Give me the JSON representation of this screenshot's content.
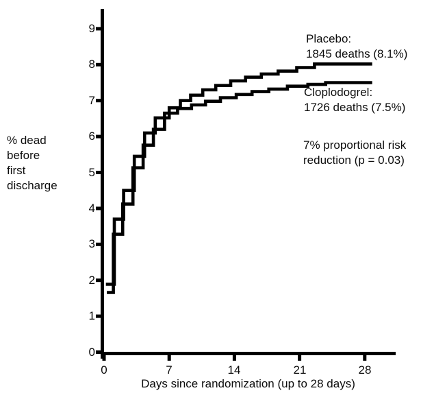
{
  "figure": {
    "background_color": "#ffffff",
    "ink_color": "#000000",
    "y_axis_label_lines": [
      "% dead",
      "before",
      "first",
      "discharge"
    ],
    "x_axis_label": "Days since randomization (up to 28 days)"
  },
  "chart_data": {
    "type": "line",
    "subtype": "cumulative-mortality-step-curves",
    "title": "",
    "xlabel": "Days since randomization (up to 28 days)",
    "ylabel": "% dead before first discharge",
    "xlim": [
      0,
      31
    ],
    "ylim": [
      0,
      9.5
    ],
    "x_ticks": [
      0,
      7,
      14,
      21,
      28
    ],
    "y_ticks": [
      0,
      1,
      2,
      3,
      4,
      5,
      6,
      7,
      8,
      9
    ],
    "grid": false,
    "legend_position": "inline-annotations",
    "line_color": "#000000",
    "series": [
      {
        "name": "Placebo",
        "deaths": 1845,
        "final_pct": 8.1,
        "points": [
          [
            0.2,
            1.89
          ],
          [
            1.1,
            3.7
          ],
          [
            2.1,
            4.5
          ],
          [
            3.25,
            5.45
          ],
          [
            4.35,
            6.1
          ],
          [
            5.5,
            6.52
          ],
          [
            7.0,
            6.8
          ],
          [
            8.2,
            7.0
          ],
          [
            9.3,
            7.15
          ],
          [
            10.6,
            7.3
          ],
          [
            12.0,
            7.42
          ],
          [
            13.6,
            7.55
          ],
          [
            15.2,
            7.65
          ],
          [
            16.9,
            7.74
          ],
          [
            18.7,
            7.82
          ],
          [
            20.7,
            7.92
          ],
          [
            22.6,
            8.02
          ],
          [
            28.8,
            8.02
          ]
        ]
      },
      {
        "name": "Cloplodogrel",
        "deaths": 1726,
        "final_pct": 7.5,
        "points": [
          [
            0.3,
            1.66
          ],
          [
            1.0,
            3.28
          ],
          [
            2.0,
            4.12
          ],
          [
            3.1,
            5.13
          ],
          [
            4.2,
            5.76
          ],
          [
            5.3,
            6.2
          ],
          [
            6.5,
            6.65
          ],
          [
            7.9,
            6.78
          ],
          [
            9.4,
            6.88
          ],
          [
            10.9,
            6.98
          ],
          [
            12.5,
            7.08
          ],
          [
            14.2,
            7.17
          ],
          [
            15.9,
            7.25
          ],
          [
            17.7,
            7.32
          ],
          [
            19.7,
            7.4
          ],
          [
            21.9,
            7.45
          ],
          [
            23.8,
            7.5
          ],
          [
            28.8,
            7.5
          ]
        ]
      }
    ],
    "annotations": {
      "placebo": {
        "line1": "Placebo:",
        "line2": "1845 deaths (8.1%)"
      },
      "clopidogrel": {
        "line1": "Cloplodogrel:",
        "line2": "1726 deaths (7.5%)"
      },
      "risk_reduction": {
        "line1": "7% proportional risk",
        "line2": "reduction (p = 0.03)"
      }
    }
  }
}
